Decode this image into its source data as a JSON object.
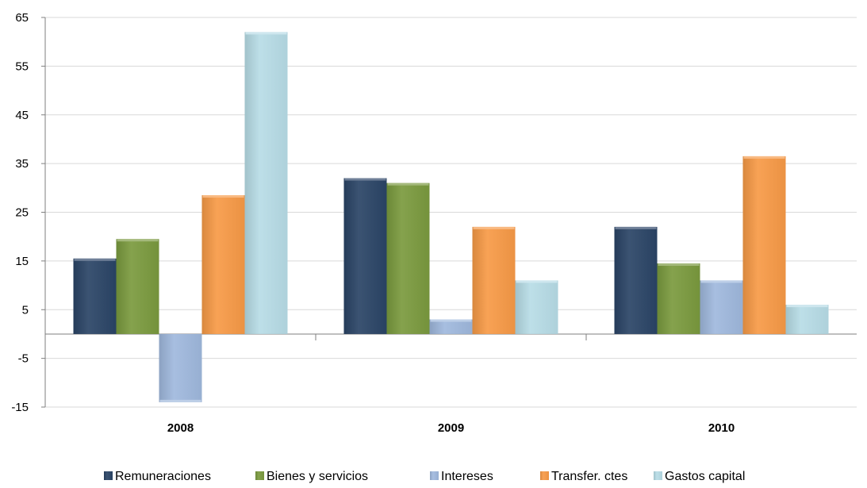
{
  "chart_data": {
    "type": "bar",
    "categories": [
      "2008",
      "2009",
      "2010"
    ],
    "yticks": [
      65,
      55,
      45,
      35,
      25,
      15,
      5,
      -5,
      -15
    ],
    "ylim": [
      -15,
      65
    ],
    "grid": true,
    "legend_position": "bottom",
    "series": [
      {
        "name": "Remuneraciones",
        "color": "#2a4466",
        "values": [
          15.5,
          32,
          22
        ]
      },
      {
        "name": "Bienes y servicios",
        "color": "#7a9a3e",
        "values": [
          19.5,
          31,
          14.5
        ]
      },
      {
        "name": "Intereses",
        "color": "#9fb8dd",
        "values": [
          -14,
          3,
          11
        ]
      },
      {
        "name": "Transfer. ctes",
        "color": "#f79a46",
        "values": [
          28.5,
          22,
          36.5
        ]
      },
      {
        "name": "Gastos capital",
        "color": "#b7dce6",
        "values": [
          62,
          11,
          6
        ]
      }
    ]
  }
}
